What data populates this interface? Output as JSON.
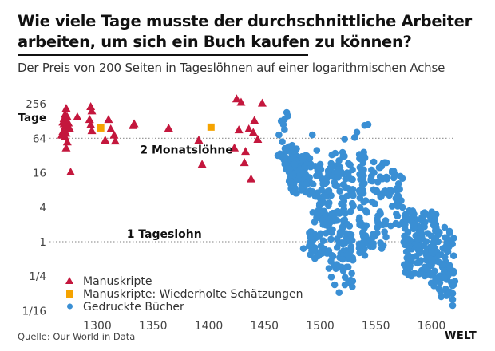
{
  "header": {
    "title": "Wie viele Tage musste der durchschnittliche Arbeiter arbeiten, um sich ein Buch kaufen zu können?",
    "subtitle": "Der Preis von 200 Seiten in Tageslöhnen auf einer logarithmischen Achse"
  },
  "footer": {
    "source": "Quelle: Our World in Data",
    "brand": "WELT"
  },
  "chart_data": {
    "type": "scatter",
    "title": "Wie viele Tage musste der durchschnittliche Arbeiter arbeiten, um sich ein Buch kaufen zu können?",
    "subtitle": "Der Preis von 200 Seiten in Tageslöhnen auf einer logarithmischen Achse",
    "xlabel": "",
    "ylabel": "Tage",
    "y_scale": "log2",
    "xlim": [
      1263,
      1625
    ],
    "ylim_log2": [
      -4.3,
      8.4
    ],
    "x_ticks": [
      1300,
      1350,
      1400,
      1450,
      1500,
      1550,
      1600
    ],
    "x_tick_labels": [
      "1300",
      "1350",
      "1400",
      "1450",
      "1500",
      "1550",
      "1600"
    ],
    "y_ticks_log2": [
      8,
      6,
      4,
      2,
      0,
      -2,
      -4
    ],
    "y_tick_labels": [
      "256",
      "64",
      "16",
      "4",
      "1",
      "1/4",
      "1/16"
    ],
    "y_unit_label": "Tage",
    "grid": false,
    "reference_lines": [
      {
        "label": "2 Monatslöhne",
        "value_log2": 6,
        "label_year": 1380
      },
      {
        "label": "1 Tageslohn",
        "value_log2": 0,
        "label_year": 1360
      }
    ],
    "legend_position": "bottom-left",
    "colors": {
      "manuscripts": "#c4173d",
      "repeated_estimates": "#f5a300",
      "printed_books": "#3a8fd4",
      "reference_line": "#9a9a9a"
    },
    "series": [
      {
        "name": "Manuskripte",
        "marker": "triangle",
        "color": "#c4173d",
        "points_year_log2": [
          [
            1272,
            7.75
          ],
          [
            1271,
            7.4
          ],
          [
            1270,
            7.15
          ],
          [
            1272,
            7.0
          ],
          [
            1270,
            6.85
          ],
          [
            1271,
            6.7
          ],
          [
            1273,
            6.55
          ],
          [
            1269,
            6.4
          ],
          [
            1272,
            6.3
          ],
          [
            1271,
            6.1
          ],
          [
            1274,
            6.9
          ],
          [
            1273,
            7.25
          ],
          [
            1269,
            6.95
          ],
          [
            1275,
            6.6
          ],
          [
            1268,
            6.2
          ],
          [
            1273,
            5.8
          ],
          [
            1272,
            5.45
          ],
          [
            1282,
            7.25
          ],
          [
            1276,
            4.05
          ],
          [
            1294,
            7.85
          ],
          [
            1295,
            7.6
          ],
          [
            1293,
            7.1
          ],
          [
            1294,
            6.8
          ],
          [
            1295,
            6.45
          ],
          [
            1310,
            7.1
          ],
          [
            1312,
            6.55
          ],
          [
            1315,
            6.2
          ],
          [
            1307,
            5.9
          ],
          [
            1316,
            5.85
          ],
          [
            1332,
            6.75
          ],
          [
            1333,
            6.85
          ],
          [
            1364,
            6.6
          ],
          [
            1391,
            5.9
          ],
          [
            1394,
            4.5
          ],
          [
            1425,
            8.3
          ],
          [
            1429,
            8.1
          ],
          [
            1441,
            7.05
          ],
          [
            1448,
            8.05
          ],
          [
            1427,
            6.5
          ],
          [
            1436,
            6.55
          ],
          [
            1440,
            6.35
          ],
          [
            1444,
            5.95
          ],
          [
            1433,
            5.25
          ],
          [
            1423,
            5.45
          ],
          [
            1438,
            3.65
          ],
          [
            1432,
            4.6
          ]
        ]
      },
      {
        "name": "Manuskripte: Wiederholte Schätzungen",
        "marker": "square",
        "color": "#f5a300",
        "points_year_log2": [
          [
            1303,
            6.6
          ],
          [
            1402,
            6.65
          ]
        ]
      },
      {
        "name": "Gedruckte Bücher",
        "marker": "circle",
        "color": "#3a8fd4",
        "clusters": [
          {
            "year_range": [
              1466,
              1480
            ],
            "log2_range": [
              4.0,
              5.6
            ],
            "count": 50
          },
          {
            "year_range": [
              1472,
              1492
            ],
            "log2_range": [
              2.8,
              5.0
            ],
            "count": 90
          },
          {
            "year_range": [
              1490,
              1506
            ],
            "log2_range": [
              -1.0,
              4.6
            ],
            "count": 70
          },
          {
            "year_range": [
              1505,
              1522
            ],
            "log2_range": [
              -1.6,
              5.2
            ],
            "count": 90
          },
          {
            "year_range": [
              1520,
              1530
            ],
            "log2_range": [
              -2.7,
              4.8
            ],
            "count": 60
          },
          {
            "year_range": [
              1535,
              1542
            ],
            "log2_range": [
              -0.8,
              5.6
            ],
            "count": 55
          },
          {
            "year_range": [
              1545,
              1560
            ],
            "log2_range": [
              -0.5,
              4.8
            ],
            "count": 55
          },
          {
            "year_range": [
              1562,
              1575
            ],
            "log2_range": [
              0.8,
              4.2
            ],
            "count": 30
          },
          {
            "year_range": [
              1575,
              1605
            ],
            "log2_range": [
              -2.0,
              1.8
            ],
            "count": 160
          },
          {
            "year_range": [
              1598,
              1620
            ],
            "log2_range": [
              -3.2,
              1.0
            ],
            "count": 70
          }
        ],
        "points_year_log2": [
          [
            1465,
            7.0
          ],
          [
            1467,
            6.8
          ],
          [
            1468,
            7.1
          ],
          [
            1463,
            6.2
          ],
          [
            1470,
            7.5
          ],
          [
            1471,
            7.3
          ],
          [
            1468,
            6.5
          ],
          [
            1466,
            5.8
          ],
          [
            1462,
            5.0
          ],
          [
            1464,
            5.1
          ],
          [
            1487,
            5.0
          ],
          [
            1497,
            5.3
          ],
          [
            1493,
            6.2
          ],
          [
            1540,
            6.75
          ],
          [
            1531,
            6.05
          ],
          [
            1533,
            6.35
          ],
          [
            1522,
            5.95
          ],
          [
            1543,
            6.8
          ],
          [
            1499,
            0.3
          ],
          [
            1513,
            -2.5
          ],
          [
            1517,
            -2.95
          ],
          [
            1510,
            -2.05
          ],
          [
            1485,
            -0.4
          ],
          [
            1537,
            -0.2
          ],
          [
            1619,
            -3.7
          ],
          [
            1619,
            -3.35
          ],
          [
            1619,
            -3.0
          ],
          [
            1621,
            -2.3
          ],
          [
            1619,
            -2.55
          ],
          [
            1610,
            -1.3
          ],
          [
            1612,
            -0.9
          ],
          [
            1580,
            1.8
          ],
          [
            1566,
            4.1
          ],
          [
            1572,
            3.8
          ],
          [
            1558,
            4.6
          ],
          [
            1553,
            4.3
          ]
        ]
      }
    ]
  }
}
